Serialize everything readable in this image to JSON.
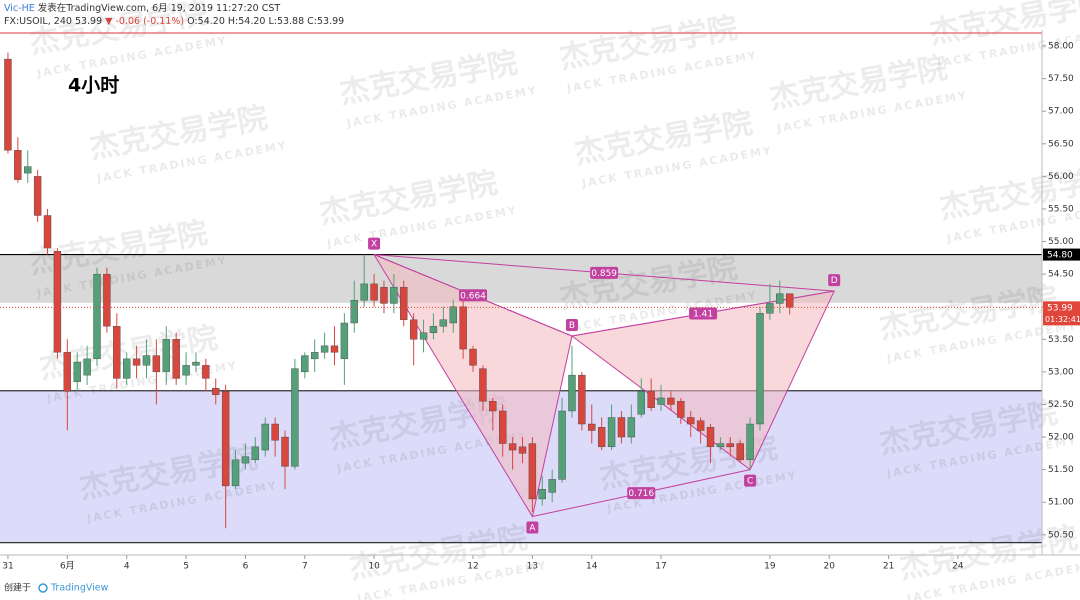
{
  "header": {
    "author": "Vic-HE",
    "published": "发表在TradingView.com, 6月 19, 2019 11:27:20 CST",
    "symbol": "FX:USOIL, 240",
    "last": "53.99",
    "change": "▼ -0.06 (-0.11%)",
    "ohlc": "O:54.20 H:54.20 L:53.88 C:53.99"
  },
  "footer": {
    "created": "创建于",
    "brand": "TradingView"
  },
  "watermark": {
    "cn": "杰克交易学院",
    "en": "JACK TRADING ACADEMY"
  },
  "chart_data": {
    "type": "candlestick",
    "title": "4小时",
    "categories": [
      "31",
      null,
      null,
      null,
      null,
      null,
      "6月",
      null,
      null,
      null,
      null,
      null,
      "4",
      null,
      null,
      null,
      null,
      null,
      "5",
      null,
      null,
      null,
      null,
      null,
      "6",
      null,
      null,
      null,
      null,
      null,
      "7",
      null,
      null,
      null,
      null,
      null,
      null,
      "10",
      null,
      null,
      null,
      null,
      null,
      null,
      null,
      null,
      null,
      "12",
      null,
      null,
      null,
      null,
      null,
      "13",
      null,
      null,
      null,
      null,
      null,
      "14",
      null,
      null,
      null,
      null,
      null,
      null,
      "17",
      null,
      null,
      null,
      null,
      null,
      null,
      null,
      null,
      null,
      null,
      "19",
      null,
      null,
      null,
      null,
      null,
      "20",
      null,
      null,
      null,
      null,
      null,
      "21",
      null,
      null,
      null,
      null,
      null,
      null,
      "24",
      null,
      null,
      null,
      null,
      null,
      null,
      null,
      null
    ],
    "open": [
      57.8,
      56.4,
      56.05,
      56.0,
      55.4,
      54.85,
      53.3,
      52.85,
      52.95,
      53.2,
      54.5,
      53.7,
      52.9,
      53.2,
      53.1,
      53.25,
      53.0,
      53.5,
      52.95,
      53.1,
      53.1,
      52.75,
      52.7,
      51.25,
      51.6,
      51.65,
      51.8,
      52.2,
      52.0,
      51.55,
      53.0,
      53.2,
      53.3,
      53.4,
      53.2,
      53.75,
      54.1,
      54.35,
      54.3,
      54.05,
      54.3,
      53.8,
      53.5,
      53.6,
      53.7,
      53.75,
      54.0,
      53.35,
      53.05,
      52.55,
      52.4,
      51.9,
      51.85,
      51.9,
      51.05,
      51.15,
      51.35,
      52.4,
      52.95,
      52.2,
      52.15,
      51.85,
      52.3,
      52.0,
      52.35,
      52.7,
      52.5,
      52.6,
      52.55,
      52.3,
      52.25,
      52.15,
      51.85,
      51.9,
      51.9,
      51.65,
      52.2,
      53.9,
      54.05,
      54.2,
      null,
      null,
      null,
      null,
      null,
      null,
      null,
      null,
      null,
      null,
      null,
      null,
      null,
      null,
      null,
      null,
      null,
      null,
      null,
      null,
      null,
      null,
      null,
      null,
      null
    ],
    "high": [
      57.9,
      56.6,
      56.4,
      56.1,
      55.5,
      54.9,
      53.5,
      53.3,
      53.4,
      54.6,
      54.6,
      53.9,
      53.3,
      53.4,
      53.5,
      53.5,
      53.7,
      53.6,
      53.3,
      53.3,
      53.2,
      52.9,
      52.8,
      51.8,
      51.9,
      52.0,
      52.3,
      52.3,
      52.1,
      53.2,
      53.3,
      53.5,
      53.6,
      53.7,
      53.9,
      54.4,
      54.8,
      54.5,
      54.4,
      54.5,
      54.4,
      53.9,
      53.8,
      53.9,
      54.0,
      54.1,
      54.1,
      53.4,
      53.1,
      52.6,
      52.5,
      52.0,
      52.0,
      52.0,
      51.4,
      51.5,
      52.6,
      53.4,
      53.0,
      52.5,
      52.3,
      52.5,
      52.4,
      52.5,
      52.9,
      52.9,
      52.8,
      52.7,
      52.6,
      52.4,
      52.3,
      52.2,
      52.0,
      52.0,
      51.95,
      52.3,
      54.0,
      54.35,
      54.4,
      54.2,
      null,
      null,
      null,
      null,
      null,
      null,
      null,
      null,
      null,
      null,
      null,
      null,
      null,
      null,
      null,
      null,
      null,
      null,
      null,
      null,
      null,
      null,
      null,
      null,
      null
    ],
    "low": [
      56.35,
      55.9,
      55.9,
      55.3,
      54.8,
      53.2,
      52.1,
      52.7,
      52.8,
      53.1,
      53.6,
      52.75,
      52.8,
      52.9,
      52.9,
      52.5,
      52.8,
      52.8,
      52.8,
      53.0,
      52.7,
      52.5,
      50.6,
      51.2,
      51.5,
      51.6,
      51.7,
      51.7,
      51.2,
      51.5,
      52.9,
      53.0,
      53.2,
      53.1,
      52.8,
      53.6,
      54.0,
      54.0,
      53.9,
      53.9,
      53.7,
      53.1,
      53.3,
      53.5,
      53.6,
      53.6,
      53.2,
      53.0,
      52.4,
      52.1,
      51.7,
      51.5,
      51.6,
      50.85,
      50.95,
      51.0,
      51.3,
      52.3,
      52.1,
      51.9,
      51.8,
      51.8,
      51.9,
      51.9,
      52.3,
      52.4,
      52.4,
      52.4,
      52.2,
      52.0,
      51.9,
      51.6,
      51.8,
      51.7,
      51.6,
      51.5,
      52.1,
      53.8,
      53.9,
      53.88,
      null,
      null,
      null,
      null,
      null,
      null,
      null,
      null,
      null,
      null,
      null,
      null,
      null,
      null,
      null,
      null,
      null,
      null,
      null,
      null,
      null,
      null,
      null,
      null,
      null
    ],
    "close": [
      56.4,
      55.95,
      56.15,
      55.4,
      54.9,
      53.3,
      52.7,
      53.15,
      53.2,
      54.5,
      53.7,
      52.9,
      53.2,
      53.1,
      53.25,
      53.0,
      53.5,
      52.9,
      53.1,
      53.15,
      52.9,
      52.65,
      51.25,
      51.65,
      51.7,
      51.85,
      52.2,
      51.95,
      51.55,
      53.05,
      53.25,
      53.3,
      53.4,
      53.3,
      53.75,
      54.1,
      54.35,
      54.1,
      54.05,
      54.3,
      53.8,
      53.5,
      53.6,
      53.7,
      53.8,
      54.0,
      53.35,
      53.1,
      52.55,
      52.4,
      51.9,
      51.8,
      51.75,
      51.05,
      51.2,
      51.35,
      52.4,
      52.95,
      52.2,
      52.1,
      51.85,
      52.3,
      52.0,
      52.3,
      52.7,
      52.45,
      52.6,
      52.5,
      52.3,
      52.2,
      52.1,
      51.85,
      51.9,
      51.85,
      51.65,
      52.2,
      53.9,
      54.05,
      54.2,
      53.99,
      null,
      null,
      null,
      null,
      null,
      null,
      null,
      null,
      null,
      null,
      null,
      null,
      null,
      null,
      null,
      null,
      null,
      null,
      null,
      null,
      null,
      null,
      null,
      null,
      null
    ],
    "up_color": "#53a079",
    "down_color": "#d8473d",
    "ylim": [
      50.19,
      58.2
    ],
    "yticks": [
      {
        "value": 50.5,
        "label": "50.50"
      },
      {
        "value": 51,
        "label": "51.00"
      },
      {
        "value": 51.5,
        "label": "51.50"
      },
      {
        "value": 52,
        "label": "52.00"
      },
      {
        "value": 52.5,
        "label": "52.50"
      },
      {
        "value": 53,
        "label": "53.00"
      },
      {
        "value": 53.5,
        "label": "53.50"
      },
      {
        "value": 54,
        "label": "54.00"
      },
      {
        "value": 54.5,
        "label": "54.50"
      },
      {
        "value": 55,
        "label": "55.00"
      },
      {
        "value": 55.5,
        "label": "55.50"
      },
      {
        "value": 56,
        "label": "56.00"
      },
      {
        "value": 56.5,
        "label": "56.50"
      },
      {
        "value": 57,
        "label": "57.00"
      },
      {
        "value": 57.5,
        "label": "57.50"
      },
      {
        "value": 58,
        "label": "58.00"
      }
    ],
    "zones": [
      {
        "from": 50.38,
        "to": 52.71,
        "color": "#dcdcfa"
      },
      {
        "from": 54.06,
        "to": 54.8,
        "color": "#d9d9d9"
      }
    ],
    "hlines": [
      {
        "value": 54.8,
        "color": "#000000"
      },
      {
        "value": 52.71,
        "color": "#333333"
      },
      {
        "value": 50.38,
        "color": "#333333"
      },
      {
        "value": 58.2,
        "color": "#e06060"
      }
    ],
    "price_labels": [
      {
        "value": 54.8,
        "label": "54.80",
        "color": "#000000"
      },
      {
        "value": 53.99,
        "label": "53.99",
        "countdown": "01:32:41",
        "color": "#e0453a"
      }
    ],
    "pattern": {
      "color": "#c2409f",
      "fill": "#f4b8c0",
      "points": [
        {
          "label": "X",
          "x": 37,
          "y": 54.8
        },
        {
          "label": "A",
          "x": 53,
          "y": 50.78
        },
        {
          "label": "B",
          "x": 57,
          "y": 53.55
        },
        {
          "label": "C",
          "x": 75,
          "y": 51.5
        },
        {
          "label": "D",
          "x": 83.5,
          "y": 54.24
        }
      ],
      "ratios": [
        {
          "label": "0.664",
          "from": 0,
          "to": 2
        },
        {
          "label": "0.859",
          "from": 0,
          "to": 4
        },
        {
          "label": "1.41",
          "from": 2,
          "to": 4
        },
        {
          "label": "0.716",
          "from": 1,
          "to": 3
        }
      ]
    }
  }
}
